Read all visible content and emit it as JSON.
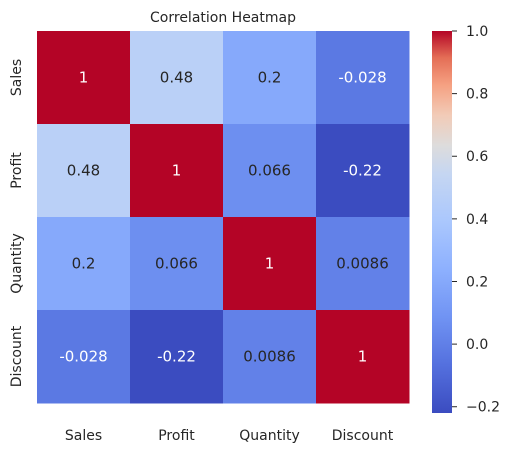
{
  "chart_data": {
    "type": "heatmap",
    "title": "Correlation Heatmap",
    "xlabel": "",
    "ylabel": "",
    "rows": [
      "Sales",
      "Profit",
      "Quantity",
      "Discount"
    ],
    "columns": [
      "Sales",
      "Profit",
      "Quantity",
      "Discount"
    ],
    "values": [
      [
        1,
        0.48,
        0.2,
        -0.028
      ],
      [
        0.48,
        1,
        0.066,
        -0.22
      ],
      [
        0.2,
        0.066,
        1,
        0.0086
      ],
      [
        -0.028,
        -0.22,
        0.0086,
        1
      ]
    ],
    "cell_labels": [
      [
        "1",
        "0.48",
        "0.2",
        "-0.028"
      ],
      [
        "0.48",
        "1",
        "0.066",
        "-0.22"
      ],
      [
        "0.2",
        "0.066",
        "1",
        "0.0086"
      ],
      [
        "-0.028",
        "-0.22",
        "0.0086",
        "1"
      ]
    ],
    "colormap": "coolwarm",
    "colorbar": {
      "range": [
        -0.22,
        1.0
      ],
      "ticks": [
        -0.2,
        0.0,
        0.2,
        0.4,
        0.6,
        0.8,
        1.0
      ],
      "tick_labels": [
        "−0.2",
        "0.0",
        "0.2",
        "0.4",
        "0.6",
        "0.8",
        "1.0"
      ]
    },
    "grid": false,
    "legend": "colorbar-right"
  }
}
